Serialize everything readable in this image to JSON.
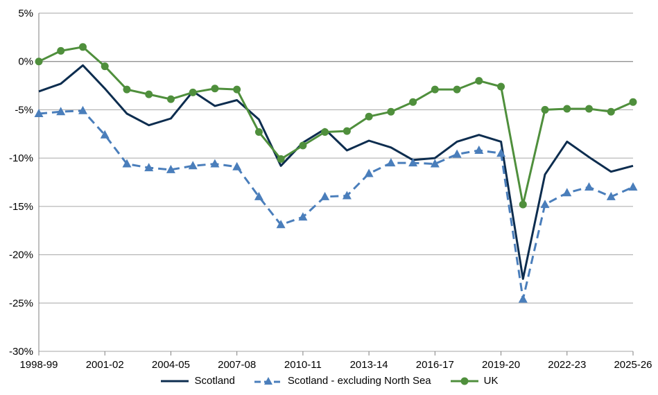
{
  "chart_data": {
    "type": "line",
    "title": "",
    "xlabel": "",
    "ylabel": "",
    "ylim": [
      -30,
      5
    ],
    "y_ticks": [
      "5%",
      "0%",
      "-5%",
      "-10%",
      "-15%",
      "-20%",
      "-25%",
      "-30%"
    ],
    "y_tick_values": [
      5,
      0,
      -5,
      -10,
      -15,
      -20,
      -25,
      -30
    ],
    "x_tick_labels": [
      "1998-99",
      "2001-02",
      "2004-05",
      "2007-08",
      "2010-11",
      "2013-14",
      "2016-17",
      "2019-20",
      "2022-23",
      "2025-26"
    ],
    "x_tick_indices": [
      0,
      3,
      6,
      9,
      12,
      15,
      18,
      21,
      24,
      27
    ],
    "categories": [
      "1998-99",
      "1999-00",
      "2000-01",
      "2001-02",
      "2002-03",
      "2003-04",
      "2004-05",
      "2005-06",
      "2006-07",
      "2007-08",
      "2008-09",
      "2009-10",
      "2010-11",
      "2011-12",
      "2012-13",
      "2013-14",
      "2014-15",
      "2015-16",
      "2016-17",
      "2017-18",
      "2018-19",
      "2019-20",
      "2020-21",
      "2021-22",
      "2022-23",
      "2023-24",
      "2024-25",
      "2025-26"
    ],
    "grid": true,
    "legend_position": "bottom",
    "series": [
      {
        "name": "Scotland",
        "color": "#0d2d4f",
        "style": "solid",
        "marker": "none",
        "values": [
          -3.1,
          -2.3,
          -0.4,
          -2.8,
          -5.4,
          -6.6,
          -5.9,
          -3.1,
          -4.6,
          -4.0,
          -6.0,
          -10.8,
          -8.4,
          -7.0,
          -9.2,
          -8.2,
          -8.9,
          -10.2,
          -10.0,
          -8.3,
          -7.6,
          -8.3,
          -22.5,
          -11.7,
          -8.3,
          -9.9,
          -11.4,
          -10.8
        ]
      },
      {
        "name": "Scotland - excluding North Sea",
        "color": "#4a7ebb",
        "style": "dashed",
        "marker": "triangle",
        "values": [
          -5.4,
          -5.2,
          -5.1,
          -7.6,
          -10.6,
          -11.0,
          -11.2,
          -10.8,
          -10.6,
          -10.9,
          -14.0,
          -16.9,
          -16.1,
          -14.0,
          -13.9,
          -11.6,
          -10.5,
          -10.5,
          -10.6,
          -9.6,
          -9.2,
          -9.5,
          -24.6,
          -14.8,
          -13.6,
          -13.0,
          -14.0,
          -13.0
        ]
      },
      {
        "name": "UK",
        "color": "#4f8f3c",
        "style": "solid",
        "marker": "circle",
        "values": [
          0.0,
          1.1,
          1.5,
          -0.5,
          -2.9,
          -3.4,
          -3.9,
          -3.2,
          -2.8,
          -2.9,
          -7.3,
          -10.1,
          -8.7,
          -7.3,
          -7.2,
          -5.7,
          -5.2,
          -4.2,
          -2.9,
          -2.9,
          -2.0,
          -2.6,
          -14.8,
          -5.0,
          -4.9,
          -4.9,
          -5.2,
          -4.2
        ]
      }
    ]
  }
}
